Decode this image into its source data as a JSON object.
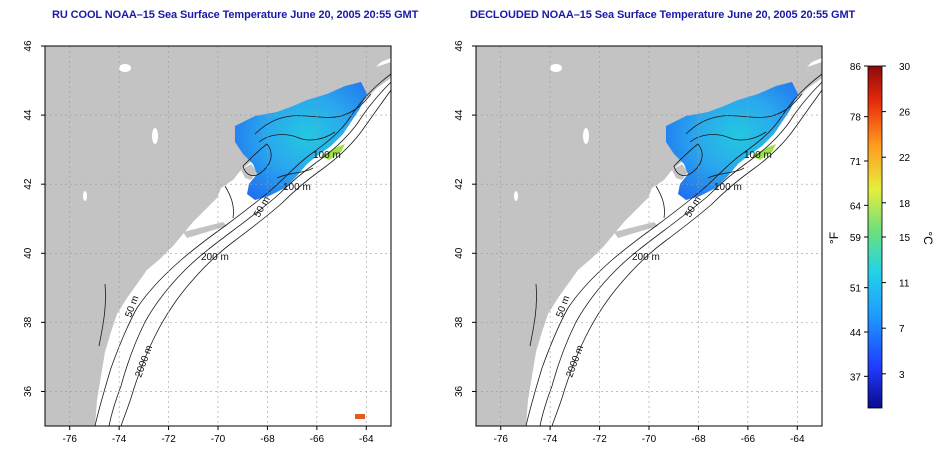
{
  "panels": [
    {
      "title": "RU COOL NOAA–15 Sea Surface Temperature June 20, 2005 20:55 GMT"
    },
    {
      "title": "DECLOUDED NOAA–15 Sea Surface Temperature June 20, 2005 20:55 GMT"
    }
  ],
  "axes": {
    "lon_ticks": [
      "-76",
      "-74",
      "-72",
      "-70",
      "-68",
      "-66",
      "-64"
    ],
    "lat_ticks": [
      "36",
      "38",
      "40",
      "42",
      "44",
      "46"
    ],
    "lon_range": [
      -77,
      -63
    ],
    "lat_range": [
      35,
      46
    ]
  },
  "contours": {
    "labels": [
      "100 m",
      "100 m",
      "50 m",
      "200 m",
      "50 m",
      "2000 m"
    ]
  },
  "colorbar": {
    "f_ticks": [
      "86",
      "78",
      "71",
      "64",
      "59",
      "51",
      "44",
      "37"
    ],
    "c_ticks": [
      "30",
      "26",
      "22",
      "18",
      "15",
      "11",
      "7",
      "3"
    ],
    "f_label": "°F",
    "c_label": "°C",
    "range_c": [
      0,
      30
    ],
    "colors": [
      "#0a0a8c",
      "#1f3cff",
      "#1e9bff",
      "#23d3e6",
      "#6fe07a",
      "#e6ee3c",
      "#ff9a1e",
      "#e6280a",
      "#8c0a0a"
    ]
  },
  "colors": {
    "land": "#c3c3c3",
    "ocean": "#ffffff",
    "title": "#1a1aa8",
    "grid": "#9a9a9a"
  }
}
